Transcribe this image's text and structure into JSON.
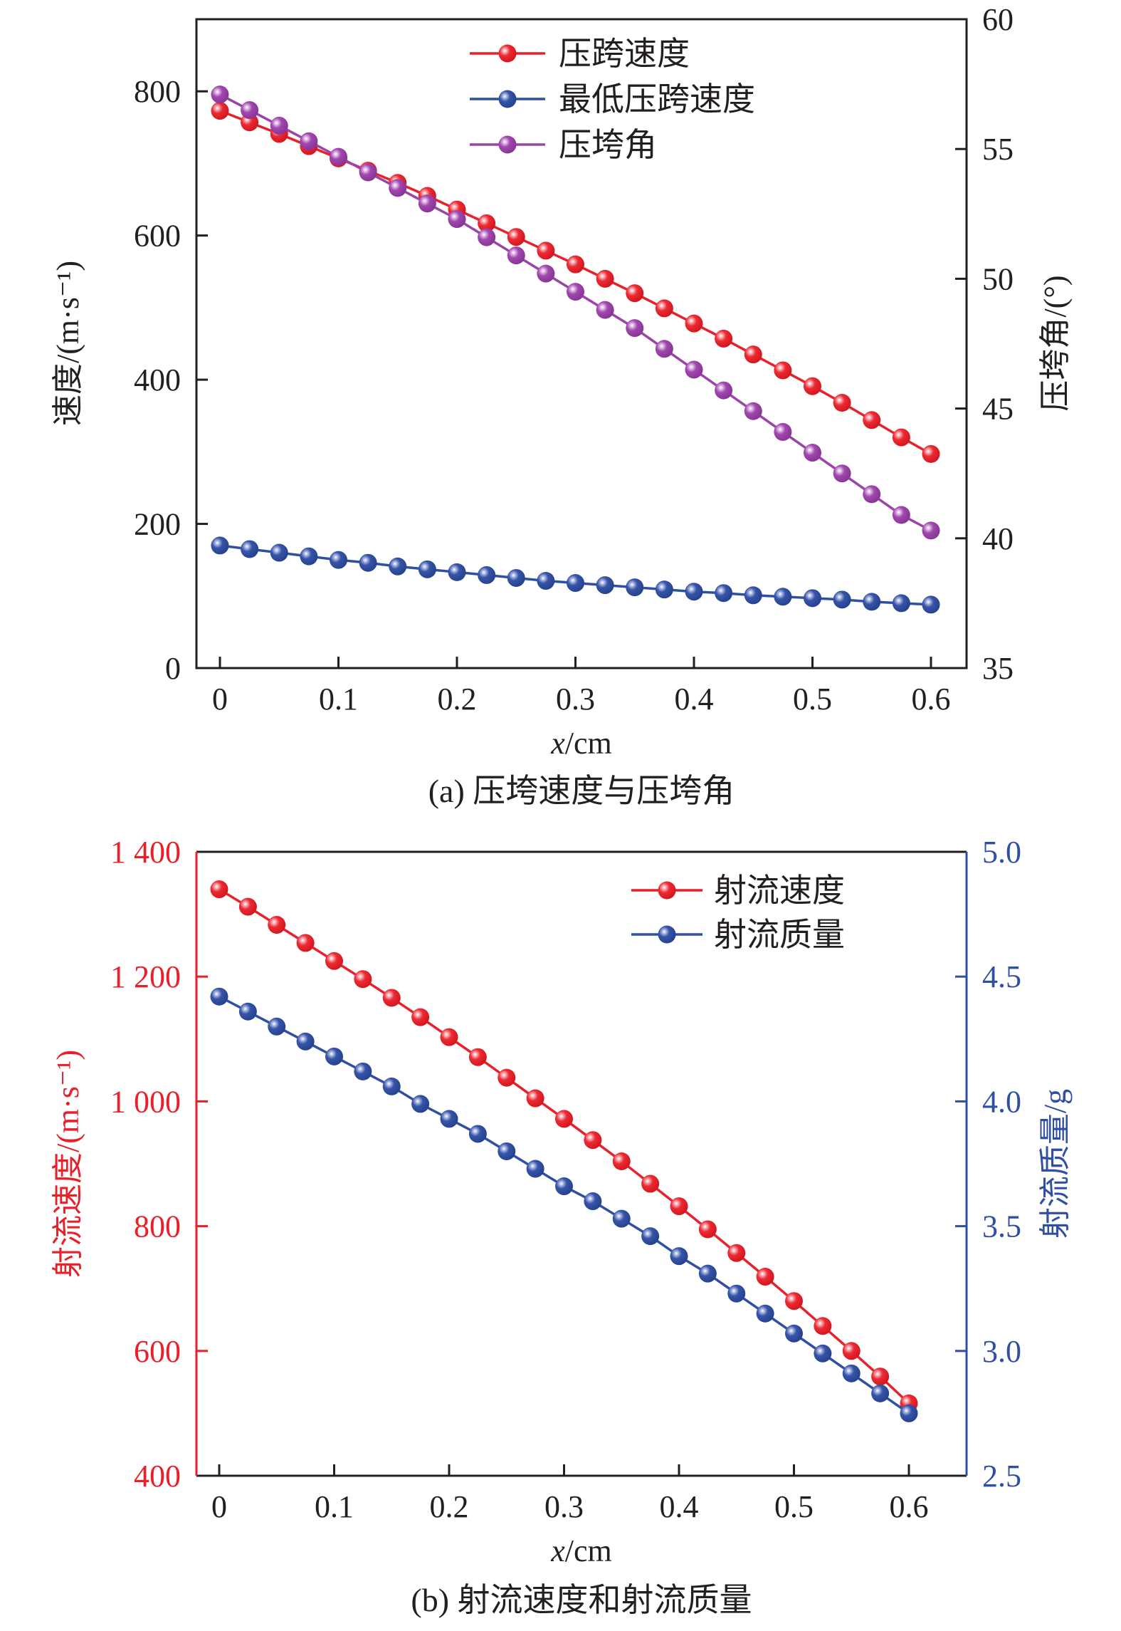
{
  "chart_data": [
    {
      "type": "line",
      "panel": "a",
      "caption": "(a) 压垮速度与压垮角",
      "xlabel_italic": "x",
      "xlabel_unit": "/cm",
      "ylabel": "速度/(m·s⁻¹)",
      "y2label": "压垮角/(°)",
      "xlim": [
        -0.018,
        0.645
      ],
      "ylim": [
        0,
        900
      ],
      "y2lim": [
        35,
        60
      ],
      "xticks": [
        0,
        0.1,
        0.2,
        0.3,
        0.4,
        0.5,
        0.6
      ],
      "xtick_labels": [
        "0",
        "0.1",
        "0.2",
        "0.3",
        "0.4",
        "0.5",
        "0.6"
      ],
      "yticks": [
        0,
        200,
        400,
        600,
        800
      ],
      "ytick_labels": [
        "0",
        "200",
        "400",
        "600",
        "800"
      ],
      "y2ticks": [
        35,
        40,
        45,
        50,
        55,
        60
      ],
      "y2tick_labels": [
        "35",
        "40",
        "45",
        "50",
        "55",
        "60"
      ],
      "axis_color": "#231f20",
      "y2_axis_color": "#231f20",
      "grid": false,
      "legend_position": "top-center",
      "x": [
        0,
        0.025,
        0.05,
        0.075,
        0.1,
        0.125,
        0.15,
        0.175,
        0.2,
        0.225,
        0.25,
        0.275,
        0.3,
        0.325,
        0.35,
        0.375,
        0.4,
        0.425,
        0.45,
        0.475,
        0.5,
        0.525,
        0.55,
        0.575,
        0.6
      ],
      "series": [
        {
          "name": "压跨速度",
          "axis": "left",
          "color": "#e8202a",
          "values": [
            773,
            757,
            741,
            724,
            707,
            690,
            673,
            655,
            636,
            617,
            598,
            579,
            560,
            540,
            520,
            499,
            478,
            457,
            435,
            413,
            391,
            368,
            344,
            320,
            297
          ]
        },
        {
          "name": "最低压跨速度",
          "axis": "left",
          "color": "#2f4fa3",
          "values": [
            170,
            165,
            160,
            155,
            150,
            146,
            141,
            137,
            133,
            129,
            125,
            121,
            118,
            115,
            112,
            109,
            106,
            104,
            101,
            99,
            97,
            95,
            92,
            90,
            88
          ]
        },
        {
          "name": "压垮角",
          "axis": "right",
          "color": "#9b44a8",
          "values": [
            57.1,
            56.5,
            55.9,
            55.3,
            54.7,
            54.1,
            53.5,
            52.9,
            52.3,
            51.6,
            50.9,
            50.2,
            49.5,
            48.8,
            48.1,
            47.3,
            46.5,
            45.7,
            44.9,
            44.1,
            43.3,
            42.5,
            41.7,
            40.9,
            40.3
          ]
        }
      ]
    },
    {
      "type": "line",
      "panel": "b",
      "caption": "(b) 射流速度和射流质量",
      "xlabel_italic": "x",
      "xlabel_unit": "/cm",
      "ylabel": "射流速度/(m·s⁻¹)",
      "y2label": "射流质量/g",
      "xlim": [
        -0.02,
        0.7
      ],
      "ylim": [
        400,
        1400
      ],
      "y2lim": [
        2.5,
        5.0
      ],
      "xticks": [
        0,
        0.1,
        0.2,
        0.3,
        0.4,
        0.5,
        0.6
      ],
      "xtick_labels": [
        "0",
        "0.1",
        "0.2",
        "0.3",
        "0.4",
        "0.5",
        "0.6"
      ],
      "yticks": [
        400,
        600,
        800,
        1000,
        1200,
        1400
      ],
      "ytick_labels": [
        "400",
        "600",
        "800",
        "1 000",
        "1 200",
        "1 400"
      ],
      "y2ticks": [
        2.5,
        3.0,
        3.5,
        4.0,
        4.5,
        5.0
      ],
      "y2tick_labels": [
        "2.5",
        "3.0",
        "3.5",
        "4.0",
        "4.5",
        "5.0"
      ],
      "axis_color": "#e8202a",
      "y2_axis_color": "#2f4fa3",
      "grid": false,
      "legend_position": "top-right",
      "x": [
        0,
        0.025,
        0.05,
        0.075,
        0.1,
        0.125,
        0.15,
        0.175,
        0.2,
        0.225,
        0.25,
        0.275,
        0.3,
        0.325,
        0.35,
        0.375,
        0.4,
        0.425,
        0.45,
        0.475,
        0.5,
        0.525,
        0.55,
        0.575,
        0.6
      ],
      "series": [
        {
          "name": "射流速度",
          "axis": "left",
          "color": "#e8202a",
          "values": [
            1340,
            1312,
            1283,
            1254,
            1225,
            1196,
            1166,
            1135,
            1103,
            1071,
            1038,
            1005,
            972,
            938,
            904,
            868,
            832,
            795,
            757,
            719,
            680,
            640,
            600,
            559,
            516
          ]
        },
        {
          "name": "射流质量",
          "axis": "right",
          "color": "#2f4fa3",
          "values": [
            4.42,
            4.36,
            4.3,
            4.24,
            4.18,
            4.12,
            4.06,
            3.99,
            3.93,
            3.87,
            3.8,
            3.73,
            3.66,
            3.6,
            3.53,
            3.46,
            3.38,
            3.31,
            3.23,
            3.15,
            3.07,
            2.99,
            2.91,
            2.83,
            2.75
          ]
        }
      ]
    }
  ]
}
